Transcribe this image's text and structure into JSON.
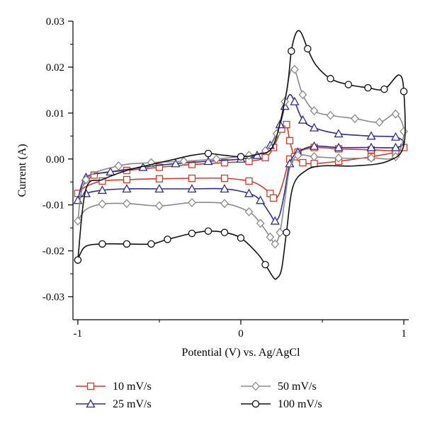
{
  "chart_data": {
    "type": "line",
    "xlabel": "Potential (V) vs. Ag/AgCl",
    "ylabel": "Current (A)",
    "xlim": [
      -1.03,
      1.03
    ],
    "ylim": [
      -0.035,
      0.03
    ],
    "xticks": [
      -1,
      0,
      1
    ],
    "xtick_labels": [
      "-1",
      "0",
      "1"
    ],
    "yticks": [
      0.03,
      0.02,
      0.01,
      0.0,
      -0.01,
      -0.02,
      -0.03
    ],
    "ytick_labels": [
      "0.03",
      "0.02",
      "0.01",
      "0.00",
      "-0.01",
      "-0.02",
      "-0.03"
    ],
    "grid": false,
    "legend_position": "bottom",
    "series": [
      {
        "name": "10 mV/s",
        "color": "#d63a26",
        "marker": "square",
        "x": [
          -1.0,
          -0.95,
          -0.85,
          -0.7,
          -0.5,
          -0.3,
          -0.1,
          0.05,
          0.12,
          0.18,
          0.2,
          0.23,
          0.26,
          0.3,
          0.35,
          0.45,
          0.6,
          0.8,
          0.95,
          1.0,
          0.95,
          0.8,
          0.6,
          0.45,
          0.38,
          0.33,
          0.3,
          0.28,
          0.25,
          0.2,
          0.15,
          0.05,
          -0.1,
          -0.3,
          -0.5,
          -0.7,
          -0.9,
          -1.0
        ],
        "y": [
          -0.0075,
          -0.006,
          -0.0048,
          -0.0045,
          -0.0043,
          -0.0042,
          -0.0042,
          -0.0048,
          -0.0058,
          -0.0075,
          -0.0085,
          -0.008,
          -0.005,
          0.0,
          0.0015,
          0.0025,
          0.0022,
          0.002,
          0.0018,
          0.0025,
          0.0015,
          0.0005,
          -0.0005,
          -0.001,
          -0.0008,
          0.0005,
          0.004,
          0.0075,
          0.0065,
          0.0025,
          0.0003,
          -0.0005,
          -0.0008,
          -0.0012,
          -0.0018,
          -0.0025,
          -0.0035,
          -0.0075
        ],
        "marker_indices": [
          0,
          2,
          3,
          4,
          5,
          6,
          7,
          9,
          10,
          13,
          14,
          15,
          16,
          17,
          18,
          19,
          20,
          21,
          22,
          23,
          24,
          25,
          26,
          27,
          28,
          29,
          30,
          31,
          32,
          33,
          34,
          35,
          36
        ]
      },
      {
        "name": "25 mV/s",
        "color": "#2e2c8f",
        "marker": "triangle",
        "x": [
          -1.0,
          -0.95,
          -0.85,
          -0.7,
          -0.5,
          -0.3,
          -0.1,
          0.05,
          0.12,
          0.18,
          0.21,
          0.24,
          0.27,
          0.3,
          0.35,
          0.45,
          0.6,
          0.8,
          0.95,
          1.0,
          0.95,
          0.8,
          0.6,
          0.45,
          0.38,
          0.33,
          0.3,
          0.27,
          0.24,
          0.18,
          0.1,
          0.0,
          -0.2,
          -0.4,
          -0.6,
          -0.8,
          -0.95,
          -1.0
        ],
        "y": [
          -0.009,
          -0.0075,
          -0.0068,
          -0.0065,
          -0.0065,
          -0.0065,
          -0.0065,
          -0.0075,
          -0.009,
          -0.012,
          -0.0135,
          -0.012,
          -0.007,
          -0.001,
          0.0015,
          0.0028,
          0.0025,
          0.0025,
          0.0025,
          0.0035,
          0.0048,
          0.005,
          0.0055,
          0.0068,
          0.0085,
          0.0125,
          0.014,
          0.0115,
          0.0075,
          0.003,
          0.0008,
          0.0,
          -0.0005,
          -0.001,
          -0.0018,
          -0.0028,
          -0.004,
          -0.009
        ],
        "marker_indices": [
          0,
          1,
          2,
          3,
          4,
          5,
          6,
          7,
          8,
          10,
          13,
          14,
          15,
          16,
          17,
          18,
          20,
          21,
          22,
          23,
          24,
          25,
          27,
          28,
          29,
          30,
          31,
          32,
          33,
          34,
          35,
          36
        ]
      },
      {
        "name": "50 mV/s",
        "color": "#8a8a8a",
        "marker": "diamond",
        "x": [
          -1.0,
          -0.95,
          -0.85,
          -0.7,
          -0.5,
          -0.3,
          -0.1,
          0.05,
          0.12,
          0.18,
          0.21,
          0.24,
          0.27,
          0.3,
          0.35,
          0.45,
          0.6,
          0.8,
          0.95,
          1.0,
          0.95,
          0.85,
          0.7,
          0.55,
          0.45,
          0.38,
          0.33,
          0.3,
          0.27,
          0.22,
          0.15,
          0.05,
          -0.15,
          -0.35,
          -0.55,
          -0.75,
          -0.95,
          -1.0
        ],
        "y": [
          -0.0135,
          -0.011,
          -0.0098,
          -0.0097,
          -0.0102,
          -0.0095,
          -0.0097,
          -0.0115,
          -0.014,
          -0.017,
          -0.0185,
          -0.016,
          -0.009,
          -0.002,
          0.0008,
          0.0005,
          0.0002,
          0.0002,
          0.0005,
          0.006,
          0.0098,
          0.008,
          0.0088,
          0.0095,
          0.0105,
          0.014,
          0.0195,
          0.0185,
          0.0125,
          0.0055,
          0.0018,
          0.0008,
          0.0,
          -0.0005,
          -0.0008,
          -0.0015,
          -0.0045,
          -0.0135
        ],
        "marker_indices": [
          0,
          2,
          3,
          4,
          5,
          6,
          7,
          8,
          9,
          10,
          11,
          14,
          15,
          16,
          17,
          18,
          19,
          20,
          21,
          22,
          23,
          24,
          25,
          26,
          28,
          29,
          30,
          31,
          32,
          33,
          34,
          35,
          36
        ]
      },
      {
        "name": "100 mV/s",
        "color": "#111111",
        "marker": "circle",
        "x": [
          -1.0,
          -0.99,
          -0.95,
          -0.85,
          -0.7,
          -0.55,
          -0.45,
          -0.3,
          -0.2,
          -0.1,
          0.0,
          0.1,
          0.15,
          0.2,
          0.22,
          0.25,
          0.28,
          0.32,
          0.4,
          0.5,
          0.7,
          0.9,
          1.0,
          1.0,
          0.97,
          0.88,
          0.78,
          0.66,
          0.55,
          0.46,
          0.41,
          0.37,
          0.34,
          0.31,
          0.28,
          0.2,
          0.1,
          0.0,
          -0.1,
          -0.2,
          -0.3,
          -0.4,
          -0.55,
          -0.7,
          -0.85,
          -0.95,
          -1.0
        ],
        "y": [
          -0.022,
          -0.021,
          -0.019,
          -0.0185,
          -0.0185,
          -0.0185,
          -0.0175,
          -0.0162,
          -0.0157,
          -0.016,
          -0.0172,
          -0.0205,
          -0.023,
          -0.0258,
          -0.026,
          -0.024,
          -0.016,
          -0.006,
          -0.0025,
          -0.0015,
          -0.0015,
          -0.0005,
          0.003,
          0.0147,
          0.0183,
          0.0152,
          0.0155,
          0.0162,
          0.0175,
          0.0205,
          0.024,
          0.0275,
          0.0275,
          0.0235,
          0.0145,
          0.003,
          0.001,
          0.0005,
          0.0008,
          0.0012,
          0.0008,
          0.0,
          -0.0012,
          -0.0025,
          -0.0045,
          -0.0065,
          -0.022
        ],
        "marker_indices": [
          0,
          3,
          4,
          5,
          6,
          7,
          8,
          9,
          10,
          12,
          16,
          23,
          25,
          26,
          27,
          28,
          30,
          33,
          37,
          39,
          46
        ]
      }
    ],
    "legend": [
      {
        "label": "10 mV/s",
        "series": 0
      },
      {
        "label": "25 mV/s",
        "series": 1
      },
      {
        "label": "50 mV/s",
        "series": 2
      },
      {
        "label": "100 mV/s",
        "series": 3
      }
    ]
  }
}
